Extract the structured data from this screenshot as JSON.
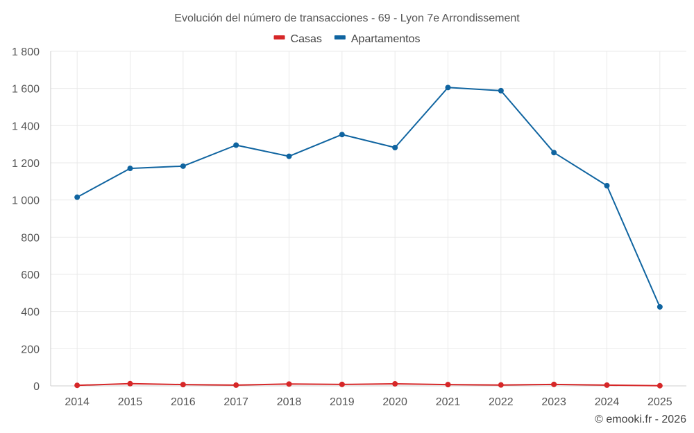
{
  "chart_data": {
    "type": "line",
    "title": "Evolución del número de transacciones - 69 - Lyon 7e Arrondissement",
    "xlabel": "",
    "ylabel": "",
    "categories": [
      "2014",
      "2015",
      "2016",
      "2017",
      "2018",
      "2019",
      "2020",
      "2021",
      "2022",
      "2023",
      "2024",
      "2025"
    ],
    "ylim": [
      0,
      1800
    ],
    "yticks": [
      0,
      200,
      400,
      600,
      800,
      1000,
      1200,
      1400,
      1600,
      1800
    ],
    "ytick_labels": [
      "0",
      "200",
      "400",
      "600",
      "800",
      "1 000",
      "1 200",
      "1 400",
      "1 600",
      "1 800"
    ],
    "grid": true,
    "legend_position": "top-center",
    "series": [
      {
        "name": "Casas",
        "color": "#d62728",
        "values": [
          3,
          12,
          7,
          4,
          10,
          8,
          11,
          7,
          5,
          8,
          4,
          1
        ]
      },
      {
        "name": "Apartamentos",
        "color": "#0f64a0",
        "values": [
          1015,
          1170,
          1182,
          1295,
          1235,
          1352,
          1282,
          1605,
          1588,
          1255,
          1077,
          425
        ]
      }
    ]
  },
  "credit": "© emooki.fr - 2026"
}
